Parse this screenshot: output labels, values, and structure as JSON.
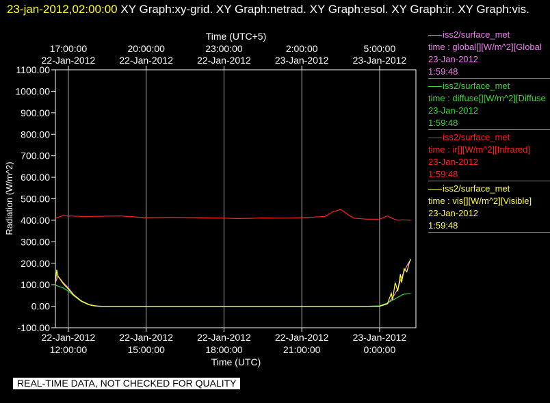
{
  "header": {
    "timestamp": "23-jan-2012,02:00:00",
    "graphs": "XY Graph:xy-grid.  XY Graph:netrad.  XY Graph:esol.  XY Graph:ir.  XY Graph:vis."
  },
  "notice": "REAL-TIME DATA, NOT CHECKED FOR QUALITY",
  "legend": [
    {
      "source": "iss2/surface_met",
      "field": "time : global[][W/m^2][Global",
      "date": "23-Jan-2012",
      "time": "1:59:48",
      "color": "#ee82ee"
    },
    {
      "source": "iss2/surface_met",
      "field": "time : diffuse[][W/m^2][Diffuse",
      "date": "23-Jan-2012",
      "time": "1:59:48",
      "color": "#33dd33"
    },
    {
      "source": "iss2/surface_met",
      "field": "time : ir[][W/m^2][Infrared]",
      "date": "23-Jan-2012",
      "time": "1:59:48",
      "color": "#ff2222"
    },
    {
      "source": "iss2/surface_met",
      "field": "time : vis[][W/m^2][Visible]",
      "date": "23-Jan-2012",
      "time": "1:59:48",
      "color": "#ffff44"
    }
  ],
  "chart_data": {
    "type": "line",
    "xlabel": "Time (UTC)",
    "x2label": "Time (UTC+5)",
    "ylabel": "Radiation (W/m^2)",
    "xlim": [
      11.5,
      25.4
    ],
    "ylim": [
      -100,
      1100
    ],
    "grid": "x-only",
    "y_ticks": [
      "-100.00",
      "0.00",
      "100.00",
      "200.00",
      "300.00",
      "400.00",
      "500.00",
      "600.00",
      "700.00",
      "800.00",
      "900.00",
      "1000.00",
      "1100.00"
    ],
    "x_ticks": [
      {
        "x": 12,
        "date": "22-Jan-2012",
        "time": "12:00:00"
      },
      {
        "x": 15,
        "date": "22-Jan-2012",
        "time": "15:00:00"
      },
      {
        "x": 18,
        "date": "22-Jan-2012",
        "time": "18:00:00"
      },
      {
        "x": 21,
        "date": "22-Jan-2012",
        "time": "21:00:00"
      },
      {
        "x": 24,
        "date": "23-Jan-2012",
        "time": "0:00:00"
      }
    ],
    "x2_ticks": [
      {
        "x": 12,
        "date": "22-Jan-2012",
        "time": "17:00:00"
      },
      {
        "x": 15,
        "date": "22-Jan-2012",
        "time": "20:00:00"
      },
      {
        "x": 18,
        "date": "22-Jan-2012",
        "time": "23:00:00"
      },
      {
        "x": 21,
        "date": "23-Jan-2012",
        "time": "2:00:00"
      },
      {
        "x": 24,
        "date": "23-Jan-2012",
        "time": "5:00:00"
      }
    ],
    "series": [
      {
        "name": "ir",
        "color": "#ff2222",
        "x": [
          11.5,
          11.8,
          12.0,
          12.5,
          13.0,
          13.5,
          14.0,
          14.5,
          15.0,
          15.5,
          16.0,
          16.5,
          17.0,
          17.5,
          18.0,
          18.5,
          19.0,
          19.5,
          20.0,
          20.5,
          21.0,
          21.5,
          21.9,
          22.2,
          22.5,
          22.8,
          23.0,
          23.5,
          24.0,
          24.3,
          24.5,
          24.7,
          24.9,
          25.2
        ],
        "y": [
          410,
          422,
          420,
          418,
          418,
          419,
          420,
          416,
          412,
          413,
          414,
          413,
          412,
          411,
          410,
          408,
          409,
          411,
          410,
          410,
          412,
          415,
          418,
          440,
          450,
          425,
          410,
          405,
          405,
          420,
          408,
          400,
          402,
          400
        ]
      },
      {
        "name": "global",
        "color": "#ee82ee",
        "x": [
          11.5,
          11.6,
          11.8,
          12.0,
          12.2,
          12.5,
          12.8,
          13.0,
          13.2,
          14.0,
          16.0,
          18.0,
          20.0,
          22.0,
          23.5,
          24.0,
          24.3,
          24.5,
          24.7,
          24.8,
          24.9,
          25.0,
          25.1,
          25.2
        ],
        "y": [
          110,
          140,
          110,
          85,
          55,
          25,
          8,
          3,
          0,
          0,
          0,
          0,
          0,
          0,
          0,
          0,
          10,
          40,
          80,
          120,
          150,
          175,
          200,
          215
        ]
      },
      {
        "name": "diffuse",
        "color": "#33dd33",
        "x": [
          11.5,
          11.8,
          12.0,
          12.2,
          12.5,
          12.8,
          13.0,
          13.3,
          14.0,
          16.0,
          18.0,
          20.0,
          22.0,
          23.5,
          24.0,
          24.3,
          24.6,
          24.9,
          25.2
        ],
        "y": [
          98,
          85,
          70,
          50,
          22,
          6,
          2,
          0,
          0,
          0,
          0,
          0,
          0,
          0,
          2,
          15,
          35,
          55,
          60
        ]
      },
      {
        "name": "vis",
        "color": "#ffff44",
        "x": [
          11.5,
          11.55,
          11.6,
          11.8,
          12.0,
          12.2,
          12.5,
          12.8,
          13.0,
          13.2,
          14.0,
          16.0,
          18.0,
          20.0,
          22.0,
          23.5,
          24.0,
          24.3,
          24.45,
          24.5,
          24.6,
          24.7,
          24.8,
          24.85,
          24.95,
          25.05,
          25.15,
          25.2
        ],
        "y": [
          105,
          170,
          140,
          105,
          80,
          52,
          24,
          7,
          2,
          0,
          0,
          0,
          0,
          0,
          0,
          0,
          0,
          12,
          60,
          30,
          110,
          70,
          150,
          110,
          175,
          160,
          205,
          220
        ]
      }
    ]
  }
}
